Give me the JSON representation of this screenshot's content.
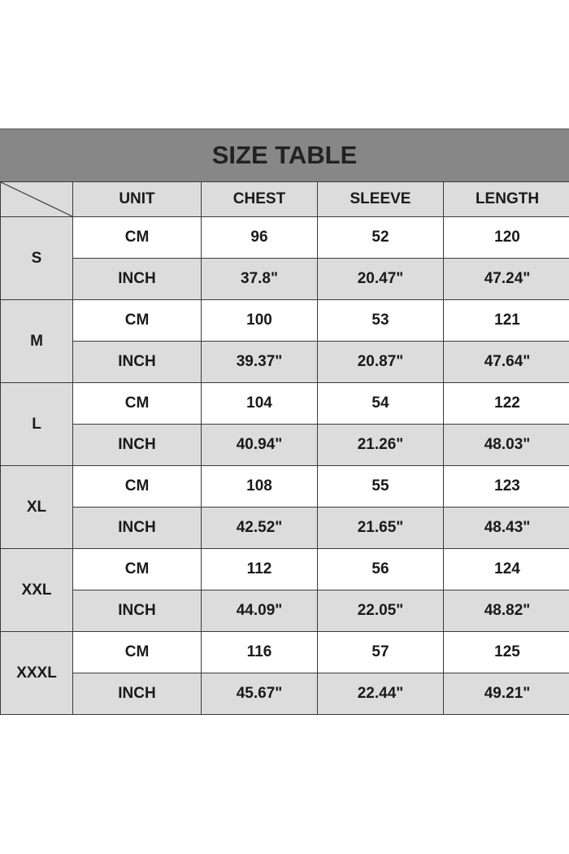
{
  "title": "SIZE TABLE",
  "headers": [
    "UNIT",
    "CHEST",
    "SLEEVE",
    "LENGTH"
  ],
  "colors": {
    "title_bg": "#878787",
    "cell_gray": "#dcdcdc",
    "cell_white": "#ffffff",
    "border": "#3a3a3a"
  },
  "rows": [
    {
      "size": "S",
      "cm": {
        "unit": "CM",
        "chest": "96",
        "sleeve": "52",
        "length": "120"
      },
      "inch": {
        "unit": "INCH",
        "chest": "37.8\"",
        "sleeve": "20.47\"",
        "length": "47.24\""
      }
    },
    {
      "size": "M",
      "cm": {
        "unit": "CM",
        "chest": "100",
        "sleeve": "53",
        "length": "121"
      },
      "inch": {
        "unit": "INCH",
        "chest": "39.37\"",
        "sleeve": "20.87\"",
        "length": "47.64\""
      }
    },
    {
      "size": "L",
      "cm": {
        "unit": "CM",
        "chest": "104",
        "sleeve": "54",
        "length": "122"
      },
      "inch": {
        "unit": "INCH",
        "chest": "40.94\"",
        "sleeve": "21.26\"",
        "length": "48.03\""
      }
    },
    {
      "size": "XL",
      "cm": {
        "unit": "CM",
        "chest": "108",
        "sleeve": "55",
        "length": "123"
      },
      "inch": {
        "unit": "INCH",
        "chest": "42.52\"",
        "sleeve": "21.65\"",
        "length": "48.43\""
      }
    },
    {
      "size": "XXL",
      "cm": {
        "unit": "CM",
        "chest": "112",
        "sleeve": "56",
        "length": "124"
      },
      "inch": {
        "unit": "INCH",
        "chest": "44.09\"",
        "sleeve": "22.05\"",
        "length": "48.82\""
      }
    },
    {
      "size": "XXXL",
      "cm": {
        "unit": "CM",
        "chest": "116",
        "sleeve": "57",
        "length": "125"
      },
      "inch": {
        "unit": "INCH",
        "chest": "45.67\"",
        "sleeve": "22.44\"",
        "length": "49.21\""
      }
    }
  ]
}
